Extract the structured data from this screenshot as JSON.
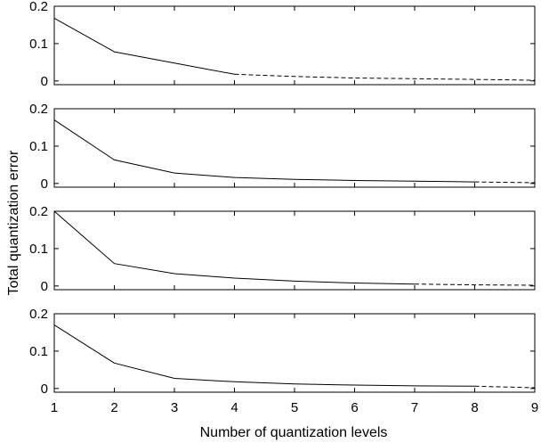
{
  "figure": {
    "ylabel": "Total quantization error",
    "xlabel": "Number of quantization levels"
  },
  "chart_data": [
    {
      "type": "line",
      "xlim": [
        1,
        9
      ],
      "ylim": [
        -0.01,
        0.2
      ],
      "yticks": [
        0,
        0.1,
        0.2
      ],
      "ytick_labels": [
        "0",
        "0.1",
        "0.2"
      ],
      "xticks": [
        1,
        2,
        3,
        4,
        5,
        6,
        7,
        8,
        9
      ],
      "grid": false,
      "series": [
        {
          "style": "solid",
          "x": [
            1,
            2,
            3,
            4
          ],
          "y": [
            0.168,
            0.078,
            0.048,
            0.018
          ]
        },
        {
          "style": "dashed",
          "x": [
            4,
            5,
            6,
            7,
            8,
            9
          ],
          "y": [
            0.018,
            0.012,
            0.008,
            0.006,
            0.004,
            0.002
          ]
        }
      ]
    },
    {
      "type": "line",
      "xlim": [
        1,
        9
      ],
      "ylim": [
        -0.01,
        0.2
      ],
      "yticks": [
        0,
        0.1,
        0.2
      ],
      "ytick_labels": [
        "0",
        "0.1",
        "0.2"
      ],
      "xticks": [
        1,
        2,
        3,
        4,
        5,
        6,
        7,
        8,
        9
      ],
      "grid": false,
      "series": [
        {
          "style": "solid",
          "x": [
            1,
            2,
            3,
            4,
            5,
            6,
            7,
            8
          ],
          "y": [
            0.17,
            0.063,
            0.028,
            0.016,
            0.011,
            0.008,
            0.006,
            0.004
          ]
        },
        {
          "style": "dashed",
          "x": [
            8,
            9
          ],
          "y": [
            0.004,
            0.002
          ]
        }
      ]
    },
    {
      "type": "line",
      "xlim": [
        1,
        9
      ],
      "ylim": [
        -0.01,
        0.2
      ],
      "yticks": [
        0,
        0.1,
        0.2
      ],
      "ytick_labels": [
        "0",
        "0.1",
        "0.2"
      ],
      "xticks": [
        1,
        2,
        3,
        4,
        5,
        6,
        7,
        8,
        9
      ],
      "grid": false,
      "series": [
        {
          "style": "solid",
          "x": [
            1,
            2,
            3,
            4,
            5,
            6,
            7
          ],
          "y": [
            0.2,
            0.06,
            0.033,
            0.021,
            0.013,
            0.008,
            0.005
          ]
        },
        {
          "style": "dashed",
          "x": [
            7,
            8,
            9
          ],
          "y": [
            0.005,
            0.003,
            0.002
          ]
        }
      ]
    },
    {
      "type": "line",
      "xlim": [
        1,
        9
      ],
      "ylim": [
        -0.01,
        0.2
      ],
      "yticks": [
        0,
        0.1,
        0.2
      ],
      "ytick_labels": [
        "0",
        "0.1",
        "0.2"
      ],
      "xticks": [
        1,
        2,
        3,
        4,
        5,
        6,
        7,
        8,
        9
      ],
      "xtick_labels": [
        "1",
        "2",
        "3",
        "4",
        "5",
        "6",
        "7",
        "8",
        "9"
      ],
      "grid": false,
      "series": [
        {
          "style": "solid",
          "x": [
            1,
            2,
            3,
            4,
            5,
            6,
            7,
            8
          ],
          "y": [
            0.17,
            0.068,
            0.027,
            0.018,
            0.012,
            0.009,
            0.007,
            0.006
          ]
        },
        {
          "style": "dashed",
          "x": [
            8,
            9
          ],
          "y": [
            0.006,
            0.002
          ]
        }
      ]
    }
  ]
}
